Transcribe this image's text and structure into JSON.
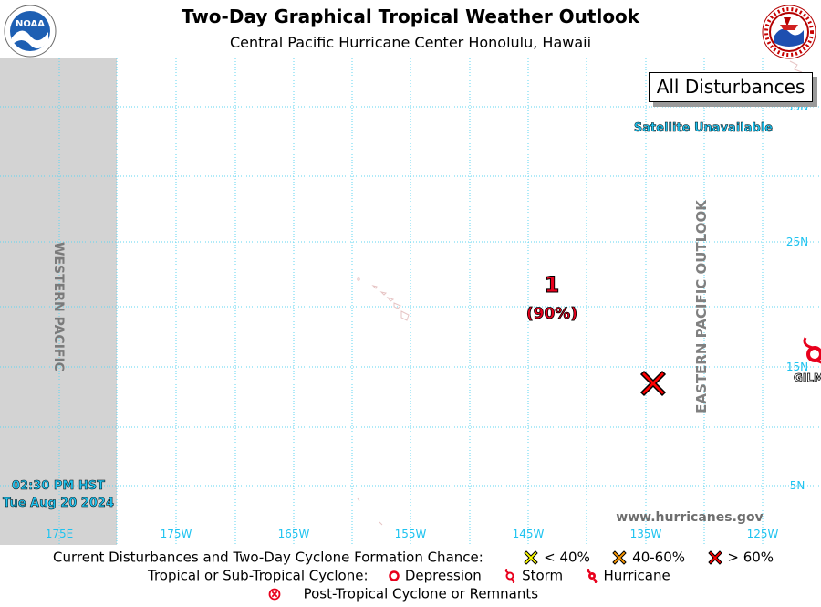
{
  "header": {
    "title": "Two-Day Graphical Tropical Weather Outlook",
    "subtitle": "Central Pacific Hurricane Center  Honolulu, Hawaii"
  },
  "logos": {
    "left": {
      "name": "noaa-logo",
      "text": "NOAA"
    },
    "right": {
      "name": "nws-logo",
      "text": "NATIONAL WEATHER SERVICE"
    }
  },
  "map": {
    "view_label": "All Disturbances",
    "satellite_status": "Satellite Unavailable",
    "western_region_label": "WESTERN PACIFIC",
    "eastern_region_label": "EASTERN PACIFIC OUTLOOK",
    "timestamp_time": "02:30 PM HST",
    "timestamp_date": "Tue Aug 20 2024",
    "website": "www.hurricanes.gov",
    "longitude_labels": [
      "175E",
      "175W",
      "165W",
      "155W",
      "145W",
      "135W",
      "125W"
    ],
    "latitude_labels": [
      "35N",
      "25N",
      "15N",
      "5N"
    ],
    "disturbances": [
      {
        "id": "1",
        "chance": "(90%)",
        "category": "> 60%"
      }
    ],
    "storms": [
      {
        "name": "GILMA",
        "partial_label": "GILM",
        "type": "Hurricane"
      }
    ],
    "colors": {
      "grid": "#5fd4f0",
      "western_shade": "#d3d3d3",
      "high_chance": "#e8001c",
      "label_blue": "#1ec3f0",
      "eastern_label": "#808080"
    }
  },
  "legend": {
    "row1_label": "Current Disturbances and Two-Day Cyclone Formation Chance:",
    "low": "< 40%",
    "medium": "40-60%",
    "high": "> 60%",
    "row2_label": "Tropical or Sub-Tropical Cyclone:",
    "depression": "Depression",
    "storm": "Storm",
    "hurricane": "Hurricane",
    "row3_label": "Post-Tropical Cyclone or Remnants",
    "colors": {
      "low": "#ffff00",
      "medium": "#ff9900",
      "high": "#ff0000"
    }
  }
}
